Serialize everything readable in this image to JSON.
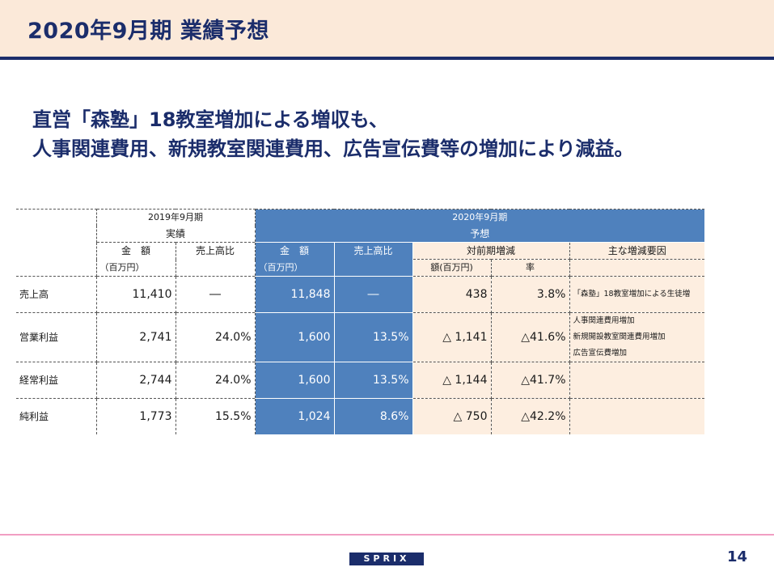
{
  "header": {
    "title": "2020年9月期 業績予想"
  },
  "headline": {
    "line1": "直営「森塾」18教室増加による増収も、",
    "line2": "人事関連費用、新規教室関連費用、広告宣伝費等の増加により減益。"
  },
  "table": {
    "header_2019_period": "2019年9月期",
    "header_2019_type": "実績",
    "header_2020_period": "2020年9月期",
    "header_2020_type": "予想",
    "col_amount": "金　額",
    "col_amount_unit": "（百万円）",
    "col_ratio": "売上高比",
    "col_yoy": "対前期増減",
    "col_yoy_amount": "額(百万円)",
    "col_yoy_rate": "率",
    "col_reason": "主な増減要因",
    "rows": [
      {
        "label": "売上高",
        "amount_2019": "11,410",
        "ratio_2019": "―",
        "amount_2020": "11,848",
        "ratio_2020": "―",
        "yoy_amount": "438",
        "yoy_rate": "3.8%",
        "reason": [
          "「森塾」18教室増加による生徒増"
        ]
      },
      {
        "label": "営業利益",
        "amount_2019": "2,741",
        "ratio_2019": "24.0%",
        "amount_2020": "1,600",
        "ratio_2020": "13.5%",
        "yoy_amount": "△ 1,141",
        "yoy_rate": "△41.6%",
        "reason": [
          "人事関連費用増加",
          "新規開設教室関連費用増加",
          "広告宣伝費増加"
        ]
      },
      {
        "label": "経常利益",
        "amount_2019": "2,744",
        "ratio_2019": "24.0%",
        "amount_2020": "1,600",
        "ratio_2020": "13.5%",
        "yoy_amount": "△ 1,144",
        "yoy_rate": "△41.7%",
        "reason": []
      },
      {
        "label": "純利益",
        "amount_2019": "1,773",
        "ratio_2019": "15.5%",
        "amount_2020": "1,024",
        "ratio_2020": "8.6%",
        "yoy_amount": "△ 750",
        "yoy_rate": "△42.2%",
        "reason": []
      }
    ]
  },
  "footer": {
    "logo": "SPRIX",
    "page_number": "14"
  }
}
